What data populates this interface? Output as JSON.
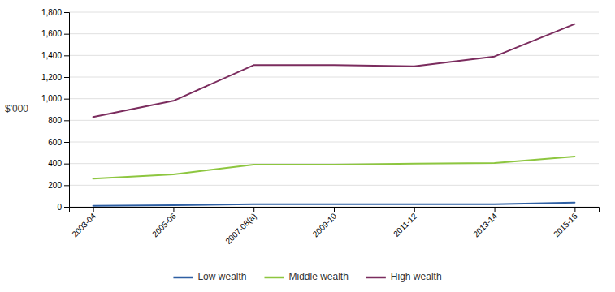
{
  "chart_data": {
    "type": "line",
    "categories": [
      "2003-04",
      "2005-06",
      "2007-08(a)",
      "2009-10",
      "2011-12",
      "2013-14",
      "2015-16"
    ],
    "series": [
      {
        "name": "Low wealth",
        "color": "#2E5FA3",
        "values": [
          10,
          15,
          25,
          25,
          25,
          25,
          40
        ]
      },
      {
        "name": "Middle wealth",
        "color": "#8DC63F",
        "values": [
          260,
          300,
          390,
          390,
          400,
          405,
          465
        ]
      },
      {
        "name": "High wealth",
        "color": "#7B2C5E",
        "values": [
          830,
          980,
          1310,
          1310,
          1300,
          1390,
          1690
        ]
      }
    ],
    "ylabel": "$'000",
    "ylim": [
      0,
      1800
    ],
    "yticks": [
      0,
      200,
      400,
      600,
      800,
      {
        "value": 1000,
        "label": "1,000"
      },
      {
        "value": 1200,
        "label": "1,200"
      },
      {
        "value": 1400,
        "label": "1,400"
      },
      {
        "value": 1600,
        "label": "1,600"
      },
      {
        "value": 1800,
        "label": "1,800"
      }
    ],
    "grid": true,
    "legend": "bottom"
  }
}
